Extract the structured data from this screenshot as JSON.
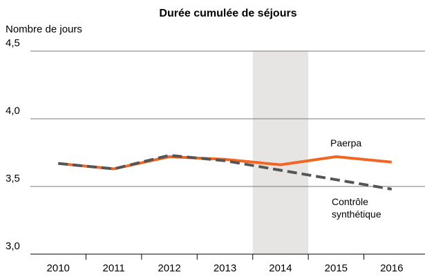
{
  "chart_data": {
    "type": "line",
    "title": "Durée cumulée de séjours",
    "y_label": "Nombre de jours",
    "categories": [
      "2010",
      "2011",
      "2012",
      "2013",
      "2014",
      "2015",
      "2016"
    ],
    "series": [
      {
        "name": "Paerpa",
        "color": "#f26522",
        "dash": false,
        "values": [
          3.67,
          3.63,
          3.72,
          3.7,
          3.66,
          3.72,
          3.68
        ]
      },
      {
        "name": "Contrôle synthétique",
        "color": "#555555",
        "dash": true,
        "values": [
          3.67,
          3.63,
          3.73,
          3.69,
          3.62,
          3.55,
          3.48
        ]
      }
    ],
    "ylim": [
      3,
      4.5
    ],
    "yticks": [
      {
        "value": 3,
        "label": "3,0"
      },
      {
        "value": 3.5,
        "label": "3,5"
      },
      {
        "value": 4,
        "label": "4,0"
      },
      {
        "value": 4.5,
        "label": "4,5"
      }
    ],
    "grid": true,
    "shaded": "2014"
  }
}
